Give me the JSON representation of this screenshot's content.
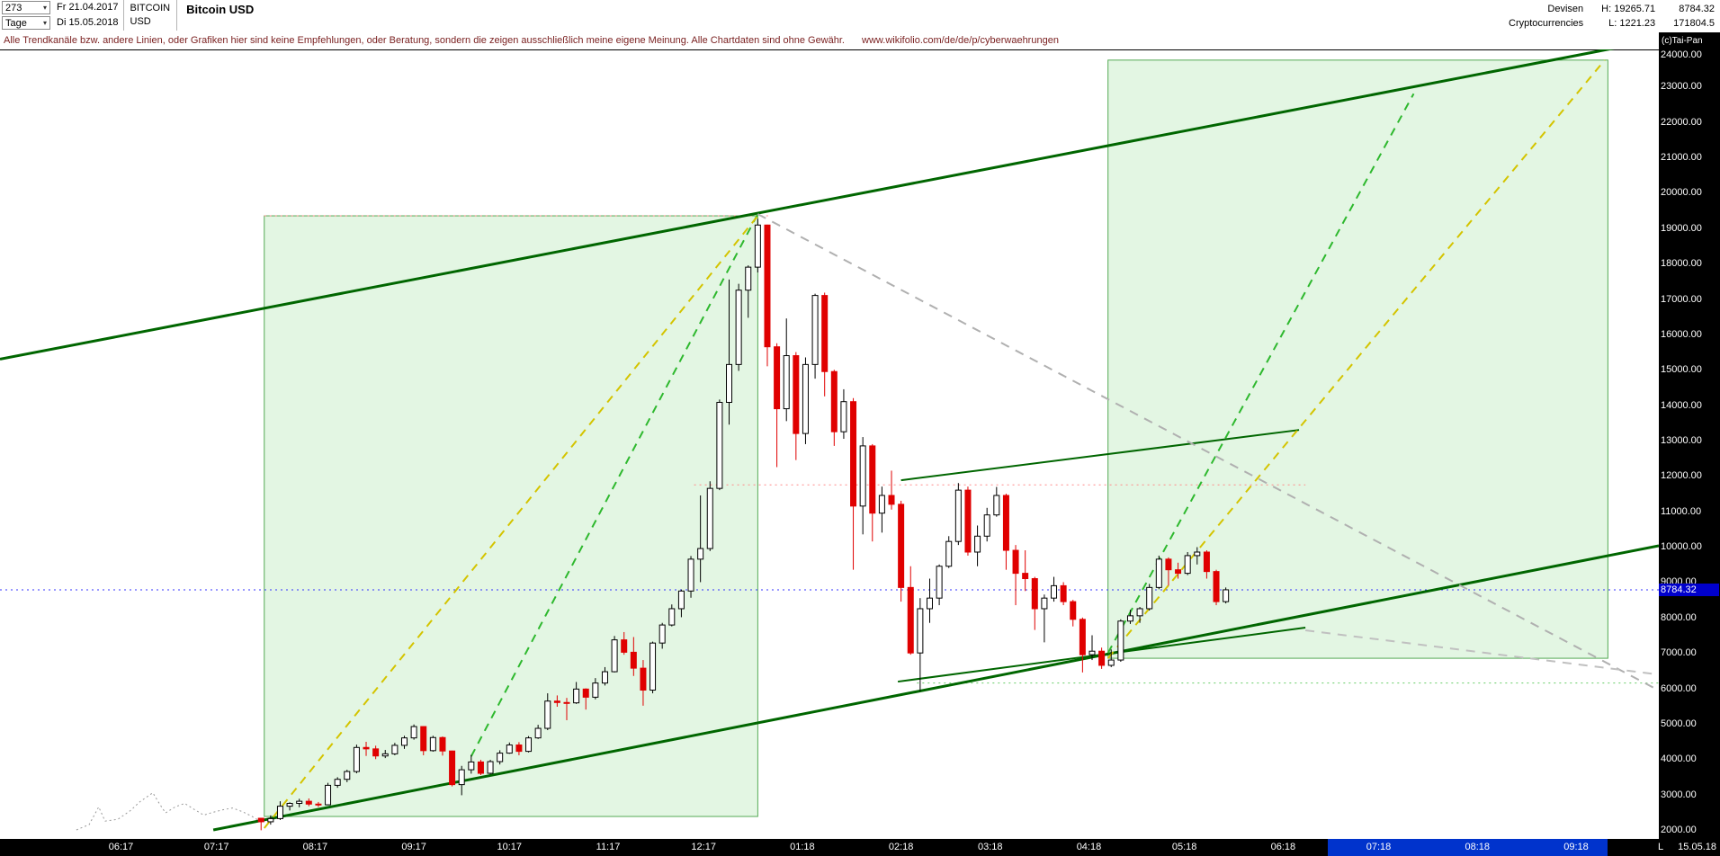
{
  "icons": {
    "dropdown": "▾"
  },
  "header": {
    "bar_count": "273",
    "period": "Tage",
    "first_date": "Fr 21.04.2017",
    "last_date": "Di 15.05.2018",
    "symbol_line1": "BITCOIN",
    "symbol_line2": "USD",
    "title": "Bitcoin USD",
    "category_line1": "Devisen",
    "category_line2": "Cryptocurrencies",
    "high_label": "H: 19265.71",
    "low_label": "L: 1221.23",
    "last_price": "8784.32",
    "volume": "171804.5"
  },
  "disclaimer": {
    "text": "Alle Trendkanäle bzw. andere Linien, oder Grafiken hier sind keine Empfehlungen, oder Beratung, sondern die zeigen ausschließlich meine eigene Meinung. Alle Chartdaten sind ohne Gewähr.",
    "link": "www.wikifolio.com/de/de/p/cyberwaehrungen"
  },
  "watermark": "(c)Tai-Pan",
  "axis": {
    "price_tag": {
      "label": "8784.32",
      "price": 8784.32,
      "bg": "#0000cc"
    },
    "last_bar_marker": "L",
    "last_bar_date": "15.05.18",
    "highlight": {
      "x1": "2018-06-15",
      "x2": "2018-09-11",
      "color": "#0033cc"
    },
    "y_ticks": [
      {
        "price": 24000,
        "label": "24000.00"
      },
      {
        "price": 23000,
        "label": "23000.00"
      },
      {
        "price": 22000,
        "label": "22000.00"
      },
      {
        "price": 21000,
        "label": "21000.00"
      },
      {
        "price": 20000,
        "label": "20000.00"
      },
      {
        "price": 19000,
        "label": "19000.00"
      },
      {
        "price": 18000,
        "label": "18000.00"
      },
      {
        "price": 17000,
        "label": "17000.00"
      },
      {
        "price": 16000,
        "label": "16000.00"
      },
      {
        "price": 15000,
        "label": "15000.00"
      },
      {
        "price": 14000,
        "label": "14000.00"
      },
      {
        "price": 13000,
        "label": "13000.00"
      },
      {
        "price": 12000,
        "label": "12000.00"
      },
      {
        "price": 11000,
        "label": "11000.00"
      },
      {
        "price": 10000,
        "label": "10000.00"
      },
      {
        "price": 9000,
        "label": "9000.00"
      },
      {
        "price": 8000,
        "label": "8000.00"
      },
      {
        "price": 7000,
        "label": "7000.00"
      },
      {
        "price": 6000,
        "label": "6000.00"
      },
      {
        "price": 5000,
        "label": "5000.00"
      },
      {
        "price": 4000,
        "label": "4000.00"
      },
      {
        "price": 3000,
        "label": "3000.00"
      },
      {
        "price": 2000,
        "label": "2000.00"
      }
    ],
    "x_ticks": [
      {
        "date": "2017-06-01",
        "label": "06:17"
      },
      {
        "date": "2017-07-01",
        "label": "07:17"
      },
      {
        "date": "2017-08-01",
        "label": "08:17"
      },
      {
        "date": "2017-09-01",
        "label": "09:17"
      },
      {
        "date": "2017-10-01",
        "label": "10:17"
      },
      {
        "date": "2017-11-01",
        "label": "11:17"
      },
      {
        "date": "2017-12-01",
        "label": "12:17"
      },
      {
        "date": "2018-01-01",
        "label": "01:18"
      },
      {
        "date": "2018-02-01",
        "label": "02:18"
      },
      {
        "date": "2018-03-01",
        "label": "03:18"
      },
      {
        "date": "2018-04-01",
        "label": "04:18"
      },
      {
        "date": "2018-05-01",
        "label": "05:18"
      },
      {
        "date": "2018-06-01",
        "label": "06:18"
      },
      {
        "date": "2018-07-01",
        "label": "07:18"
      },
      {
        "date": "2018-08-01",
        "label": "08:18"
      },
      {
        "date": "2018-09-01",
        "label": "09:18"
      }
    ]
  },
  "chart_data": {
    "type": "candlestick",
    "title": "Bitcoin USD",
    "period": "daily",
    "high": 19265.71,
    "low": 1221.23,
    "current_price": 8784.32,
    "x_range": [
      "2017-04-24",
      "2018-09-27"
    ],
    "y_range": [
      2000,
      24000
    ],
    "bars_start": "2017-07-15",
    "bar_interval_days": 3,
    "candle_style": {
      "up_color": "#ffffff",
      "up_border": "#000000",
      "down_color": "#e00000"
    },
    "ohlc": [
      [
        2330,
        2340,
        1990,
        2230
      ],
      [
        2230,
        2410,
        2150,
        2320
      ],
      [
        2320,
        2810,
        2280,
        2670
      ],
      [
        2670,
        2780,
        2550,
        2750
      ],
      [
        2750,
        2880,
        2640,
        2810
      ],
      [
        2810,
        2890,
        2670,
        2730
      ],
      [
        2730,
        2790,
        2650,
        2710
      ],
      [
        2710,
        3330,
        2700,
        3260
      ],
      [
        3260,
        3490,
        3190,
        3430
      ],
      [
        3430,
        3700,
        3350,
        3650
      ],
      [
        3650,
        4410,
        3600,
        4330
      ],
      [
        4330,
        4490,
        4090,
        4290
      ],
      [
        4290,
        4380,
        4000,
        4090
      ],
      [
        4090,
        4260,
        4030,
        4150
      ],
      [
        4150,
        4460,
        4110,
        4390
      ],
      [
        4390,
        4660,
        4290,
        4600
      ],
      [
        4600,
        4980,
        4550,
        4920
      ],
      [
        4920,
        4930,
        4110,
        4240
      ],
      [
        4240,
        4660,
        4210,
        4610
      ],
      [
        4610,
        4640,
        4100,
        4230
      ],
      [
        4230,
        4240,
        3230,
        3280
      ],
      [
        3280,
        3810,
        2980,
        3700
      ],
      [
        3700,
        4120,
        3590,
        3920
      ],
      [
        3920,
        3980,
        3550,
        3600
      ],
      [
        3600,
        3980,
        3570,
        3930
      ],
      [
        3930,
        4250,
        3850,
        4170
      ],
      [
        4170,
        4470,
        4150,
        4400
      ],
      [
        4400,
        4480,
        4110,
        4220
      ],
      [
        4220,
        4650,
        4190,
        4600
      ],
      [
        4600,
        4970,
        4570,
        4870
      ],
      [
        4870,
        5860,
        4820,
        5640
      ],
      [
        5640,
        5800,
        5480,
        5600
      ],
      [
        5600,
        5730,
        5100,
        5590
      ],
      [
        5590,
        6180,
        5560,
        5980
      ],
      [
        5980,
        6000,
        5400,
        5750
      ],
      [
        5750,
        6290,
        5690,
        6150
      ],
      [
        6150,
        6600,
        6080,
        6470
      ],
      [
        6470,
        7480,
        6450,
        7370
      ],
      [
        7370,
        7590,
        6950,
        7020
      ],
      [
        7020,
        7450,
        6350,
        6570
      ],
      [
        6570,
        6800,
        5510,
        5950
      ],
      [
        5950,
        7320,
        5860,
        7280
      ],
      [
        7280,
        7850,
        7120,
        7790
      ],
      [
        7790,
        8370,
        7750,
        8250
      ],
      [
        8250,
        8790,
        8010,
        8750
      ],
      [
        8750,
        9740,
        8560,
        9650
      ],
      [
        9650,
        11450,
        9000,
        9950
      ],
      [
        9950,
        11850,
        9880,
        11650
      ],
      [
        11650,
        14160,
        11600,
        14080
      ],
      [
        14080,
        17550,
        13450,
        15150
      ],
      [
        15150,
        17430,
        14970,
        17250
      ],
      [
        17250,
        17950,
        16470,
        17900
      ],
      [
        17900,
        19266,
        17750,
        19090
      ],
      [
        19090,
        19100,
        15100,
        15650
      ],
      [
        15650,
        15750,
        12250,
        13900
      ],
      [
        13900,
        16450,
        13550,
        15400
      ],
      [
        15400,
        15500,
        12450,
        13200
      ],
      [
        13200,
        15350,
        12900,
        15150
      ],
      [
        15150,
        17150,
        14750,
        17100
      ],
      [
        17100,
        17180,
        14250,
        14950
      ],
      [
        14950,
        15000,
        12850,
        13250
      ],
      [
        13250,
        14450,
        13050,
        14100
      ],
      [
        14100,
        14200,
        9350,
        11150
      ],
      [
        11150,
        13100,
        10350,
        12850
      ],
      [
        12850,
        12900,
        10150,
        10950
      ],
      [
        10950,
        11700,
        10400,
        11450
      ],
      [
        11450,
        12150,
        11050,
        11200
      ],
      [
        11200,
        11300,
        8450,
        8850
      ],
      [
        8850,
        9450,
        6950,
        7000
      ],
      [
        7000,
        8550,
        5920,
        8250
      ],
      [
        8250,
        9100,
        7850,
        8550
      ],
      [
        8550,
        9500,
        8350,
        9450
      ],
      [
        9450,
        10300,
        9400,
        10150
      ],
      [
        10150,
        11800,
        10050,
        11600
      ],
      [
        11600,
        11700,
        9750,
        9850
      ],
      [
        9850,
        10600,
        9450,
        10300
      ],
      [
        10300,
        11100,
        10150,
        10900
      ],
      [
        10900,
        11690,
        10850,
        11450
      ],
      [
        11450,
        11500,
        9350,
        9900
      ],
      [
        9900,
        10050,
        8350,
        9250
      ],
      [
        9250,
        9900,
        8750,
        9100
      ],
      [
        9100,
        9150,
        7650,
        8250
      ],
      [
        8250,
        8650,
        7300,
        8550
      ],
      [
        8550,
        9150,
        8450,
        8900
      ],
      [
        8900,
        9000,
        8350,
        8450
      ],
      [
        8450,
        8500,
        7750,
        7950
      ],
      [
        7950,
        8000,
        6450,
        6950
      ],
      [
        6950,
        7500,
        6800,
        7050
      ],
      [
        7050,
        7150,
        6550,
        6650
      ],
      [
        6650,
        7100,
        6600,
        6800
      ],
      [
        6800,
        7950,
        6750,
        7900
      ],
      [
        7900,
        8220,
        7820,
        8050
      ],
      [
        8050,
        8300,
        7850,
        8250
      ],
      [
        8250,
        8950,
        8200,
        8850
      ],
      [
        8850,
        9750,
        8800,
        9650
      ],
      [
        9650,
        9700,
        8900,
        9350
      ],
      [
        9350,
        9550,
        9100,
        9250
      ],
      [
        9250,
        9850,
        9200,
        9750
      ],
      [
        9750,
        9990,
        9500,
        9850
      ],
      [
        9850,
        9900,
        9100,
        9300
      ],
      [
        9300,
        9350,
        8350,
        8450
      ],
      [
        8450,
        8850,
        8400,
        8784.32
      ]
    ],
    "history_line": {
      "color": "#999999",
      "points": [
        [
          "2017-05-18",
          2000
        ],
        [
          "2017-05-22",
          2150
        ],
        [
          "2017-05-25",
          2650
        ],
        [
          "2017-05-27",
          2250
        ],
        [
          "2017-05-31",
          2300
        ],
        [
          "2017-06-04",
          2550
        ],
        [
          "2017-06-07",
          2800
        ],
        [
          "2017-06-11",
          3050
        ],
        [
          "2017-06-13",
          2750
        ],
        [
          "2017-06-15",
          2480
        ],
        [
          "2017-06-18",
          2650
        ],
        [
          "2017-06-21",
          2750
        ],
        [
          "2017-06-24",
          2580
        ],
        [
          "2017-06-27",
          2420
        ],
        [
          "2017-06-30",
          2500
        ],
        [
          "2017-07-03",
          2570
        ],
        [
          "2017-07-06",
          2620
        ],
        [
          "2017-07-09",
          2520
        ],
        [
          "2017-07-12",
          2390
        ],
        [
          "2017-07-14",
          2280
        ]
      ]
    },
    "regions": [
      {
        "name": "rally-zone",
        "x1": "2017-07-16",
        "x2": "2017-12-18",
        "y_top": 19350,
        "y_bottom": 2380,
        "fill": "#99dd99",
        "opacity": 0.28,
        "stroke": "#55aa55"
      },
      {
        "name": "projection-zone",
        "x1": "2018-04-07",
        "x2": "2018-09-11",
        "y_top": 23750,
        "y_bottom": 6850,
        "fill": "#99dd99",
        "opacity": 0.28,
        "stroke": "#55aa55"
      }
    ],
    "trend_lines": [
      {
        "name": "channel-top",
        "color": "#006600",
        "width": 3,
        "dash": null,
        "pts": [
          [
            "2017-04-24",
            15300
          ],
          [
            "2018-09-27",
            24330
          ]
        ]
      },
      {
        "name": "channel-bottom",
        "color": "#006600",
        "width": 3,
        "dash": null,
        "pts": [
          [
            "2017-06-30",
            2000
          ],
          [
            "2018-09-27",
            10030
          ]
        ]
      },
      {
        "name": "mid-resistance",
        "color": "#006600",
        "width": 2,
        "dash": null,
        "pts": [
          [
            "2018-02-01",
            11880
          ],
          [
            "2018-06-06",
            13300
          ]
        ]
      },
      {
        "name": "low-support",
        "color": "#006600",
        "width": 2,
        "dash": null,
        "pts": [
          [
            "2018-01-31",
            6190
          ],
          [
            "2018-06-08",
            7715
          ]
        ]
      },
      {
        "name": "rally-trend-green",
        "color": "#2eb82e",
        "width": 2,
        "dash": "9,7",
        "pts": [
          [
            "2017-09-19",
            4080
          ],
          [
            "2017-12-18",
            19400
          ]
        ]
      },
      {
        "name": "projection-trend-green",
        "color": "#2eb82e",
        "width": 2,
        "dash": "9,7",
        "pts": [
          [
            "2018-04-07",
            7000
          ],
          [
            "2018-07-12",
            22800
          ]
        ]
      },
      {
        "name": "rally-trend-yellow",
        "color": "#d4c400",
        "width": 2,
        "dash": "9,7",
        "pts": [
          [
            "2017-07-16",
            2050
          ],
          [
            "2017-12-18",
            19350
          ]
        ]
      },
      {
        "name": "projection-trend-yellow",
        "color": "#d4c400",
        "width": 2,
        "dash": "9,7",
        "pts": [
          [
            "2018-04-07",
            6850
          ],
          [
            "2018-09-10",
            23750
          ]
        ]
      },
      {
        "name": "downtrend-gray",
        "color": "#b0b0b0",
        "width": 2,
        "dash": "10,8",
        "pts": [
          [
            "2017-12-18",
            19400
          ],
          [
            "2018-09-27",
            5940
          ]
        ]
      },
      {
        "name": "flat-gray",
        "color": "#c0c0c0",
        "width": 2,
        "dash": "10,8",
        "pts": [
          [
            "2018-06-08",
            7640
          ],
          [
            "2018-09-27",
            6390
          ]
        ]
      }
    ],
    "h_lines": [
      {
        "name": "ath-level",
        "color": "#ff8888",
        "level": 19350,
        "x1": "2017-07-16",
        "x2": "2017-12-22",
        "dash": "2,4",
        "width": 1
      },
      {
        "name": "feb-high-level",
        "color": "#ff8888",
        "level": 11750,
        "x1": "2017-11-28",
        "x2": "2018-06-08",
        "dash": "2,4",
        "width": 1
      },
      {
        "name": "low-level",
        "color": "#66cc66",
        "level": 6150,
        "x1": "2018-02-06",
        "x2": "2018-09-27",
        "dash": "2,4",
        "width": 1
      },
      {
        "name": "current-price-line",
        "color": "#3333ff",
        "level": 8784.32,
        "x1": "2017-04-24",
        "x2": "2018-09-27",
        "dash": "2,4",
        "width": 1
      }
    ]
  }
}
